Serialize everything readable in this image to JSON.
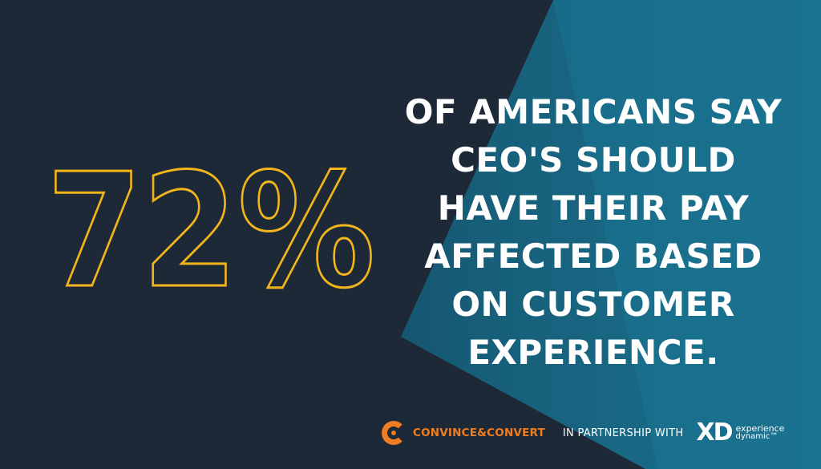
{
  "stat": {
    "value": "72%"
  },
  "headline": {
    "lines": [
      "OF AMERICANS SAY",
      "CEO'S SHOULD",
      "HAVE THEIR PAY",
      "AFFECTED BASED",
      "ON CUSTOMER",
      "EXPERIENCE."
    ]
  },
  "footer": {
    "brand_left": "CONVINCE&CONVERT",
    "partnership_text": "IN PARTNERSHIP WITH",
    "brand_right_mark": "XD",
    "brand_right_line1": "experience",
    "brand_right_line2": "dynamic™"
  },
  "colors": {
    "background": "#1e2938",
    "accent_teal": "#1a7391",
    "stat_outline": "#f2b51c",
    "brand_orange": "#ef7d22",
    "text": "#ffffff"
  },
  "icons": {
    "left_logo": "convince-convert-c-icon",
    "right_logo": "xd-logo"
  }
}
